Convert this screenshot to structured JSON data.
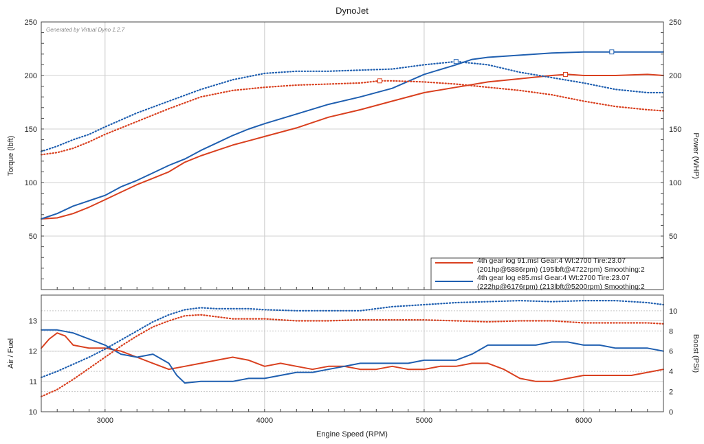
{
  "title": "DynoJet",
  "watermark": "Generated by Virtual Dyno 1.2.7",
  "colors": {
    "red": "#d9401f",
    "blue": "#1f5fb0",
    "grid": "#c8c8c8",
    "frame": "#444444"
  },
  "chart_data": [
    {
      "type": "line",
      "name": "torque-power",
      "xlabel": "Engine Speed (RPM)",
      "ylabel_left": "Torque (lbft)",
      "ylabel_right": "Power (WHP)",
      "xlim": [
        2600,
        6500
      ],
      "ylim_left": [
        0,
        250
      ],
      "ylim_right": [
        0,
        250
      ],
      "xticks": [
        3000,
        4000,
        5000,
        6000
      ],
      "yticks_left": [
        50,
        100,
        150,
        200,
        250
      ],
      "yticks_right": [
        50,
        100,
        150,
        200,
        250
      ],
      "legend": [
        {
          "name": "legend-91",
          "color": "#d9401f",
          "line1": "4th gear log 91.msl Gear:4 Wt:2700 Tire:23.07",
          "line2": "(201hp@5886rpm) (195lbft@4722rpm) Smoothing:2"
        },
        {
          "name": "legend-e85",
          "color": "#1f5fb0",
          "line1": "4th gear log e85.msl Gear:4 Wt:2700 Tire:23.07",
          "line2": "(222hp@6176rpm) (213lbft@5200rpm) Smoothing:2"
        }
      ],
      "series": [
        {
          "name": "91 power",
          "color": "#d9401f",
          "style": "solid",
          "axis": "right",
          "x": [
            2600,
            2700,
            2800,
            2900,
            3000,
            3100,
            3200,
            3300,
            3400,
            3500,
            3600,
            3700,
            3800,
            3900,
            4000,
            4200,
            4400,
            4600,
            4800,
            5000,
            5200,
            5400,
            5600,
            5800,
            5900,
            6000,
            6200,
            6400,
            6500
          ],
          "y": [
            66,
            67,
            71,
            77,
            84,
            91,
            98,
            104,
            110,
            119,
            125,
            130,
            135,
            139,
            143,
            151,
            161,
            168,
            176,
            184,
            189,
            194,
            197,
            200,
            201,
            200,
            200,
            201,
            200
          ]
        },
        {
          "name": "e85 power",
          "color": "#1f5fb0",
          "style": "solid",
          "axis": "right",
          "x": [
            2600,
            2700,
            2800,
            2900,
            3000,
            3100,
            3200,
            3300,
            3400,
            3500,
            3600,
            3700,
            3800,
            3900,
            4000,
            4200,
            4400,
            4600,
            4800,
            5000,
            5200,
            5300,
            5400,
            5600,
            5800,
            6000,
            6200,
            6400,
            6500
          ],
          "y": [
            66,
            71,
            78,
            83,
            88,
            96,
            102,
            109,
            116,
            122,
            130,
            137,
            144,
            150,
            155,
            164,
            173,
            180,
            188,
            201,
            210,
            215,
            217,
            219,
            221,
            222,
            222,
            222,
            222
          ]
        },
        {
          "name": "91 torque",
          "color": "#d9401f",
          "style": "dotted",
          "axis": "left",
          "x": [
            2600,
            2700,
            2800,
            2900,
            3000,
            3200,
            3400,
            3600,
            3800,
            4000,
            4200,
            4400,
            4600,
            4722,
            4800,
            5000,
            5200,
            5400,
            5600,
            5800,
            6000,
            6200,
            6400,
            6500
          ],
          "y": [
            126,
            128,
            132,
            138,
            145,
            157,
            169,
            180,
            186,
            189,
            191,
            192,
            193,
            195,
            195,
            194,
            192,
            189,
            186,
            182,
            176,
            171,
            168,
            167
          ]
        },
        {
          "name": "e85 torque",
          "color": "#1f5fb0",
          "style": "dotted",
          "axis": "left",
          "x": [
            2600,
            2700,
            2800,
            2900,
            3000,
            3200,
            3400,
            3600,
            3800,
            4000,
            4200,
            4400,
            4600,
            4800,
            5000,
            5200,
            5400,
            5600,
            5800,
            6000,
            6200,
            6400,
            6500
          ],
          "y": [
            129,
            134,
            140,
            145,
            152,
            165,
            176,
            187,
            196,
            202,
            204,
            204,
            205,
            206,
            210,
            213,
            210,
            203,
            198,
            193,
            187,
            184,
            184
          ]
        }
      ],
      "markers": [
        {
          "color": "#d9401f",
          "axis": "left",
          "x": 4722,
          "y": 195
        },
        {
          "color": "#d9401f",
          "axis": "right",
          "x": 5886,
          "y": 201
        },
        {
          "color": "#1f5fb0",
          "axis": "left",
          "x": 5200,
          "y": 213
        },
        {
          "color": "#1f5fb0",
          "axis": "right",
          "x": 6176,
          "y": 222
        }
      ]
    },
    {
      "type": "line",
      "name": "afr-boost",
      "xlabel": "Engine Speed (RPM)",
      "ylabel_left": "Air / Fuel",
      "ylabel_right": "Boost (PSI)",
      "xlim": [
        2600,
        6500
      ],
      "ylim_left": [
        10,
        13.85
      ],
      "ylim_right": [
        0,
        11.55
      ],
      "xticks": [
        3000,
        4000,
        5000,
        6000
      ],
      "yticks_left": [
        10,
        11,
        12,
        13
      ],
      "yticks_right": [
        0,
        2,
        4,
        6,
        8,
        10
      ],
      "series": [
        {
          "name": "91 afr",
          "color": "#d9401f",
          "style": "solid",
          "axis": "left",
          "x": [
            2600,
            2650,
            2700,
            2750,
            2800,
            2900,
            3000,
            3100,
            3200,
            3300,
            3400,
            3500,
            3600,
            3700,
            3800,
            3900,
            4000,
            4100,
            4200,
            4300,
            4400,
            4500,
            4600,
            4700,
            4800,
            4900,
            5000,
            5100,
            5200,
            5300,
            5400,
            5500,
            5600,
            5700,
            5800,
            5900,
            6000,
            6100,
            6200,
            6300,
            6400,
            6500
          ],
          "y": [
            12.1,
            12.4,
            12.6,
            12.5,
            12.2,
            12.1,
            12.1,
            12.0,
            11.8,
            11.6,
            11.4,
            11.5,
            11.6,
            11.7,
            11.8,
            11.7,
            11.5,
            11.6,
            11.5,
            11.4,
            11.5,
            11.5,
            11.4,
            11.4,
            11.5,
            11.4,
            11.4,
            11.5,
            11.5,
            11.6,
            11.6,
            11.4,
            11.1,
            11.0,
            11.0,
            11.1,
            11.2,
            11.2,
            11.2,
            11.2,
            11.3,
            11.4
          ]
        },
        {
          "name": "e85 afr",
          "color": "#1f5fb0",
          "style": "solid",
          "axis": "left",
          "x": [
            2600,
            2700,
            2800,
            2900,
            3000,
            3100,
            3200,
            3300,
            3400,
            3450,
            3500,
            3600,
            3700,
            3800,
            3900,
            4000,
            4100,
            4200,
            4300,
            4400,
            4500,
            4600,
            4700,
            4800,
            4900,
            5000,
            5100,
            5200,
            5300,
            5400,
            5500,
            5600,
            5700,
            5800,
            5900,
            6000,
            6100,
            6200,
            6300,
            6400,
            6500
          ],
          "y": [
            12.7,
            12.7,
            12.6,
            12.4,
            12.2,
            11.9,
            11.8,
            11.9,
            11.6,
            11.2,
            10.95,
            11.0,
            11.0,
            11.0,
            11.1,
            11.1,
            11.2,
            11.3,
            11.3,
            11.4,
            11.5,
            11.6,
            11.6,
            11.6,
            11.6,
            11.7,
            11.7,
            11.7,
            11.9,
            12.2,
            12.2,
            12.2,
            12.2,
            12.3,
            12.3,
            12.2,
            12.2,
            12.1,
            12.1,
            12.1,
            12.0
          ]
        },
        {
          "name": "91 boost",
          "color": "#d9401f",
          "style": "dotted",
          "axis": "right",
          "x": [
            2600,
            2700,
            2800,
            2900,
            3000,
            3100,
            3200,
            3300,
            3400,
            3500,
            3600,
            3700,
            3800,
            3900,
            4000,
            4200,
            4400,
            4600,
            4800,
            5000,
            5200,
            5400,
            5600,
            5800,
            6000,
            6200,
            6400,
            6500
          ],
          "y": [
            1.5,
            2.2,
            3.2,
            4.3,
            5.4,
            6.5,
            7.5,
            8.4,
            9.0,
            9.5,
            9.6,
            9.4,
            9.2,
            9.2,
            9.2,
            9.0,
            9.0,
            9.1,
            9.1,
            9.1,
            9.0,
            8.9,
            9.0,
            9.0,
            8.8,
            8.8,
            8.8,
            8.7
          ]
        },
        {
          "name": "e85 boost",
          "color": "#1f5fb0",
          "style": "dotted",
          "axis": "right",
          "x": [
            2600,
            2700,
            2800,
            2900,
            3000,
            3100,
            3200,
            3300,
            3400,
            3500,
            3600,
            3700,
            3800,
            3900,
            4000,
            4200,
            4400,
            4600,
            4800,
            5000,
            5200,
            5400,
            5600,
            5800,
            6000,
            6200,
            6400,
            6500
          ],
          "y": [
            3.4,
            4.0,
            4.7,
            5.4,
            6.2,
            7.1,
            8.0,
            8.9,
            9.6,
            10.1,
            10.3,
            10.2,
            10.2,
            10.2,
            10.1,
            10.0,
            10.0,
            10.0,
            10.4,
            10.6,
            10.8,
            10.9,
            11.0,
            10.9,
            11.0,
            11.0,
            10.8,
            10.6
          ]
        }
      ]
    }
  ]
}
